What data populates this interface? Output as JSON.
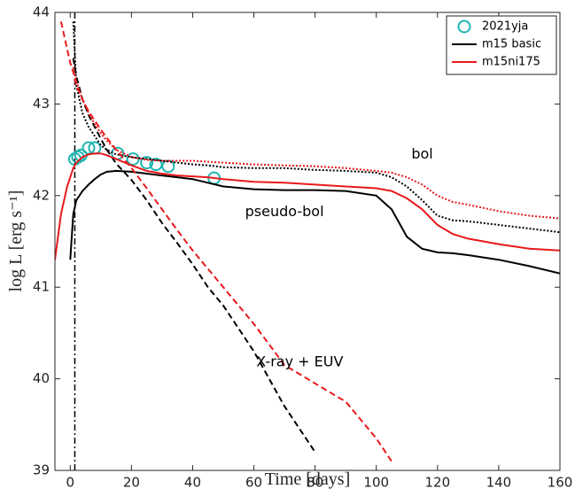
{
  "chart_data": {
    "type": "line",
    "xlabel": "Time [days]",
    "ylabel": "log L [erg s⁻¹]",
    "xlim": [
      -5,
      160
    ],
    "ylim": [
      39,
      44
    ],
    "xticks": [
      0,
      20,
      40,
      60,
      80,
      100,
      120,
      140,
      160
    ],
    "yticks": [
      39,
      40,
      41,
      42,
      43,
      44
    ],
    "legend": "upper right",
    "vline_x": 1.5,
    "annotations": [
      "bol",
      "pseudo-bol",
      "X-ray + EUV"
    ],
    "series": [
      {
        "name": "2021yja",
        "color": "#1fb5b0",
        "marker": "circle",
        "x": [
          1.5,
          2.5,
          3.5,
          6,
          8,
          15.5,
          20.5,
          25,
          28,
          32,
          47
        ],
        "values": [
          42.4,
          42.42,
          42.44,
          42.52,
          42.52,
          42.46,
          42.4,
          42.36,
          42.34,
          42.32,
          42.19
        ]
      },
      {
        "name": "m15 basic",
        "color": "#000000",
        "x": [
          -5,
          -3,
          -1,
          0,
          1,
          2,
          4,
          6,
          8,
          10,
          12,
          15,
          20,
          25,
          30,
          35,
          40,
          45,
          50,
          60,
          70,
          80,
          90,
          100,
          105,
          110,
          115,
          120,
          125,
          130,
          140,
          150,
          160
        ],
        "pseudo_bol": [
          null,
          null,
          null,
          41.3,
          41.8,
          41.95,
          42.05,
          42.12,
          42.18,
          42.23,
          42.26,
          42.27,
          42.26,
          42.24,
          42.22,
          42.2,
          42.18,
          42.14,
          42.1,
          42.07,
          42.06,
          42.06,
          42.05,
          42.0,
          41.85,
          41.55,
          41.42,
          41.38,
          41.37,
          41.35,
          41.3,
          41.23,
          41.15
        ],
        "bol": [
          null,
          null,
          null,
          null,
          43.9,
          43.2,
          42.9,
          42.75,
          42.65,
          42.55,
          42.5,
          42.45,
          42.42,
          42.4,
          42.38,
          42.36,
          42.34,
          42.33,
          42.31,
          42.3,
          42.3,
          42.28,
          42.27,
          42.25,
          42.2,
          42.1,
          41.95,
          41.78,
          41.73,
          41.72,
          41.68,
          41.64,
          41.6
        ],
        "xray_euv": [
          null,
          null,
          null,
          null,
          43.5,
          43.3,
          43.05,
          42.88,
          42.75,
          42.62,
          42.5,
          42.35,
          42.17,
          41.95,
          41.7,
          41.48,
          41.25,
          41.0,
          40.8,
          40.3,
          39.7,
          39.2,
          null,
          null,
          null,
          null,
          null,
          null,
          null,
          null,
          null,
          null,
          null
        ]
      },
      {
        "name": "m15ni175",
        "color": "#e8191c",
        "x": [
          -5,
          -3,
          -1,
          0,
          1,
          2,
          4,
          6,
          8,
          10,
          12,
          15,
          20,
          25,
          30,
          35,
          40,
          45,
          50,
          60,
          70,
          80,
          90,
          100,
          105,
          110,
          115,
          120,
          125,
          130,
          140,
          150,
          160
        ],
        "pseudo_bol": [
          41.3,
          41.8,
          42.1,
          42.2,
          42.3,
          42.36,
          42.42,
          42.45,
          42.46,
          42.46,
          42.44,
          42.4,
          42.33,
          42.27,
          42.24,
          42.22,
          42.21,
          42.2,
          42.18,
          42.15,
          42.14,
          42.12,
          42.1,
          42.08,
          42.05,
          41.97,
          41.85,
          41.68,
          41.58,
          41.53,
          41.47,
          41.42,
          41.4
        ],
        "bol": [
          null,
          null,
          null,
          null,
          43.4,
          43.25,
          43.05,
          42.9,
          42.78,
          42.68,
          42.6,
          42.5,
          42.42,
          42.39,
          42.38,
          42.38,
          42.38,
          42.37,
          42.36,
          42.34,
          42.33,
          42.32,
          42.3,
          42.27,
          42.25,
          42.2,
          42.12,
          42.0,
          41.93,
          41.9,
          41.83,
          41.78,
          41.75
        ],
        "xray_euv": [
          null,
          43.9,
          43.6,
          43.45,
          43.35,
          43.2,
          43.05,
          42.92,
          42.82,
          42.72,
          42.63,
          42.5,
          42.3,
          42.08,
          41.85,
          41.62,
          41.4,
          41.2,
          41.0,
          40.6,
          40.15,
          39.95,
          39.75,
          39.35,
          39.1,
          null,
          null,
          null,
          null,
          null,
          null,
          null,
          null
        ]
      }
    ]
  }
}
